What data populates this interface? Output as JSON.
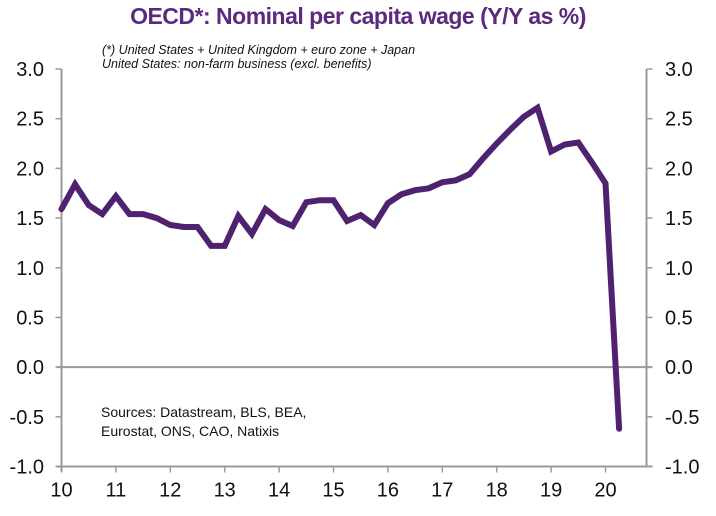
{
  "chart_data": {
    "type": "line",
    "title": "OECD*:  Nominal per capita wage (Y/Y as %)",
    "notes": [
      "(*) United States + United Kingdom + euro zone + Japan",
      "United States: non-farm business (excl. benefits)"
    ],
    "sources": [
      "Sources:  Datastream,  BLS,  BEA,",
      "Eurostat,  ONS,  CAO,  Natixis"
    ],
    "xlabel": "",
    "ylabel": "",
    "xlim": [
      2010,
      2020.85
    ],
    "ylim": [
      -1.0,
      3.0
    ],
    "x_ticks": [
      2010,
      2011,
      2012,
      2013,
      2014,
      2015,
      2016,
      2017,
      2018,
      2019,
      2020
    ],
    "x_tick_labels": [
      "10",
      "11",
      "12",
      "13",
      "14",
      "15",
      "16",
      "17",
      "18",
      "19",
      "20"
    ],
    "y_ticks": [
      3.0,
      2.5,
      2.0,
      1.5,
      1.0,
      0.5,
      0.0,
      -0.5,
      -1.0
    ],
    "y_tick_labels": [
      "3.0",
      "2.5",
      "2.0",
      "1.5",
      "1.0",
      "0.5",
      "0.0",
      "-0.5",
      "-1.0"
    ],
    "grid": false,
    "zero_line": true,
    "legend": "none",
    "color": "#4f2270",
    "series": [
      {
        "name": "Nominal per capita wage (Y/Y %)",
        "x": [
          2010.0,
          2010.25,
          2010.5,
          2010.75,
          2011.0,
          2011.25,
          2011.5,
          2011.75,
          2012.0,
          2012.25,
          2012.5,
          2012.75,
          2013.0,
          2013.25,
          2013.5,
          2013.75,
          2014.0,
          2014.25,
          2014.5,
          2014.75,
          2015.0,
          2015.25,
          2015.5,
          2015.75,
          2016.0,
          2016.25,
          2016.5,
          2016.75,
          2017.0,
          2017.25,
          2017.5,
          2017.75,
          2018.0,
          2018.25,
          2018.5,
          2018.75,
          2019.0,
          2019.25,
          2019.5,
          2019.75,
          2020.0,
          2020.25
        ],
        "values": [
          1.59,
          1.84,
          1.63,
          1.54,
          1.72,
          1.54,
          1.54,
          1.5,
          1.43,
          1.41,
          1.41,
          1.22,
          1.22,
          1.52,
          1.34,
          1.59,
          1.48,
          1.42,
          1.66,
          1.68,
          1.68,
          1.47,
          1.53,
          1.43,
          1.65,
          1.74,
          1.78,
          1.8,
          1.86,
          1.88,
          1.94,
          2.1,
          2.25,
          2.39,
          2.52,
          2.61,
          2.17,
          2.24,
          2.26,
          2.06,
          1.85,
          -0.62
        ]
      }
    ]
  }
}
